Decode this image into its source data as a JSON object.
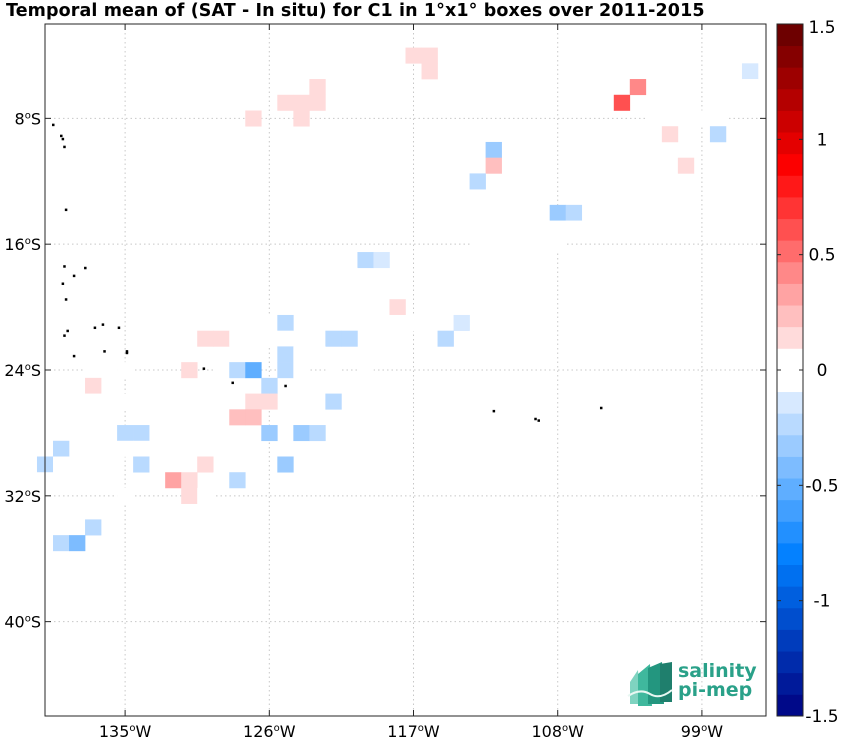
{
  "title": "Temporal mean of (SAT - In situ) for C1 in 1°x1° boxes over 2011-2015",
  "map": {
    "lon_range": [
      -140,
      -95
    ],
    "lat_range": [
      -46,
      -2
    ],
    "lon_ticks": [
      {
        "lon": -135,
        "deg": "135",
        "hem": "W"
      },
      {
        "lon": -126,
        "deg": "126",
        "hem": "W"
      },
      {
        "lon": -117,
        "deg": "117",
        "hem": "W"
      },
      {
        "lon": -108,
        "deg": "108",
        "hem": "W"
      },
      {
        "lon": -99,
        "deg": "99",
        "hem": "W"
      }
    ],
    "lat_ticks": [
      {
        "lat": -8,
        "deg": "8",
        "hem": "S"
      },
      {
        "lat": -16,
        "deg": "16",
        "hem": "S"
      },
      {
        "lat": -24,
        "deg": "24",
        "hem": "S"
      },
      {
        "lat": -32,
        "deg": "32",
        "hem": "S"
      },
      {
        "lat": -40,
        "deg": "40",
        "hem": "S"
      }
    ],
    "grid": true,
    "islands": [
      [
        -139.5,
        -8.4
      ],
      [
        -139.0,
        -9.1
      ],
      [
        -138.8,
        -9.8
      ],
      [
        -138.9,
        -9.3
      ],
      [
        -138.7,
        -13.8
      ],
      [
        -138.8,
        -17.4
      ],
      [
        -138.2,
        -18.0
      ],
      [
        -137.5,
        -17.5
      ],
      [
        -138.9,
        -18.5
      ],
      [
        -138.7,
        -19.5
      ],
      [
        -136.9,
        -21.3
      ],
      [
        -136.4,
        -21.1
      ],
      [
        -135.4,
        -21.3
      ],
      [
        -138.8,
        -21.8
      ],
      [
        -138.6,
        -21.5
      ],
      [
        -136.3,
        -22.8
      ],
      [
        -134.9,
        -22.8
      ],
      [
        -134.9,
        -22.9
      ],
      [
        -138.2,
        -23.1
      ],
      [
        -130.1,
        -23.9
      ],
      [
        -128.3,
        -24.8
      ],
      [
        -125.0,
        -25.0
      ],
      [
        -112.0,
        -26.6
      ],
      [
        -109.4,
        -27.1
      ],
      [
        -109.2,
        -27.2
      ],
      [
        -105.3,
        -26.4
      ]
    ]
  },
  "colorbar": {
    "range": [
      -1.5,
      1.5
    ],
    "levels": 32,
    "tick_values": [
      1.5,
      1,
      0.5,
      0,
      -0.5,
      -1,
      -1.5
    ],
    "tick_labels": [
      "1.5",
      "1",
      "0.5",
      "0",
      "-0.5",
      "-1",
      "-1.5"
    ]
  },
  "chart_data": {
    "type": "heatmap",
    "title": "Temporal mean of (SAT - In situ) for C1 in 1°x1° boxes over 2011-2015",
    "xlabel": "",
    "ylabel": "",
    "cell_size_deg": 1,
    "xlim": [
      -140,
      -95
    ],
    "ylim": [
      -46,
      -2
    ],
    "colorbar_range": [
      -1.5,
      1.5
    ],
    "cells": [
      {
        "lon": -117,
        "lat": -4,
        "v": 0.1
      },
      {
        "lon": -116,
        "lat": -4,
        "v": 0.1
      },
      {
        "lon": -116,
        "lat": -5,
        "v": 0.1
      },
      {
        "lon": -96,
        "lat": -5,
        "v": -0.1
      },
      {
        "lon": -123,
        "lat": -6,
        "v": 0.1
      },
      {
        "lon": -103,
        "lat": -6,
        "v": 0.4
      },
      {
        "lon": -96,
        "lat": -6,
        "v": -0.05
      },
      {
        "lon": -125,
        "lat": -7,
        "v": 0.1
      },
      {
        "lon": -124,
        "lat": -7,
        "v": 0.1
      },
      {
        "lon": -123,
        "lat": -7,
        "v": 0.1
      },
      {
        "lon": -104,
        "lat": -7,
        "v": 0.6
      },
      {
        "lon": -97,
        "lat": -7,
        "v": -0.05
      },
      {
        "lon": -127,
        "lat": -8,
        "v": 0.1
      },
      {
        "lon": -124,
        "lat": -8,
        "v": 0.1
      },
      {
        "lon": -102,
        "lat": -8,
        "v": -0.05
      },
      {
        "lon": -101,
        "lat": -8,
        "v": -0.05
      },
      {
        "lon": -100,
        "lat": -8,
        "v": -0.05
      },
      {
        "lon": -99,
        "lat": -8,
        "v": -0.05
      },
      {
        "lon": -98,
        "lat": -8,
        "v": -0.05
      },
      {
        "lon": -101,
        "lat": -9,
        "v": 0.1
      },
      {
        "lon": -98,
        "lat": -9,
        "v": -0.2
      },
      {
        "lon": -112,
        "lat": -10,
        "v": -0.3
      },
      {
        "lon": -112,
        "lat": -11,
        "v": 0.2
      },
      {
        "lon": -100,
        "lat": -11,
        "v": 0.1
      },
      {
        "lon": -113,
        "lat": -12,
        "v": -0.2
      },
      {
        "lon": -111,
        "lat": -13,
        "v": -0.05
      },
      {
        "lon": -105,
        "lat": -13,
        "v": -0.05
      },
      {
        "lon": -103,
        "lat": -13,
        "v": -0.05
      },
      {
        "lon": -101,
        "lat": -13,
        "v": -0.05
      },
      {
        "lon": -114,
        "lat": -14,
        "v": -0.05
      },
      {
        "lon": -108,
        "lat": -14,
        "v": -0.35
      },
      {
        "lon": -107,
        "lat": -14,
        "v": -0.2
      },
      {
        "lon": -113,
        "lat": -15,
        "v": -0.05
      },
      {
        "lon": -112,
        "lat": -15,
        "v": -0.05
      },
      {
        "lon": -111,
        "lat": -15,
        "v": -0.05
      },
      {
        "lon": -110,
        "lat": -15,
        "v": -0.05
      },
      {
        "lon": -109,
        "lat": -15,
        "v": -0.05
      },
      {
        "lon": -108,
        "lat": -15,
        "v": -0.05
      },
      {
        "lon": -107,
        "lat": -15,
        "v": -0.05
      },
      {
        "lon": -113,
        "lat": -16,
        "v": -0.05
      },
      {
        "lon": -112,
        "lat": -16,
        "v": -0.05
      },
      {
        "lon": -111,
        "lat": -16,
        "v": -0.05
      },
      {
        "lon": -110,
        "lat": -16,
        "v": -0.05
      },
      {
        "lon": -109,
        "lat": -16,
        "v": -0.05
      },
      {
        "lon": -108,
        "lat": -16,
        "v": -0.05
      },
      {
        "lon": -121,
        "lat": -17,
        "v": -0.05
      },
      {
        "lon": -120,
        "lat": -17,
        "v": -0.2
      },
      {
        "lon": -119,
        "lat": -17,
        "v": -0.1
      },
      {
        "lon": -113,
        "lat": -17,
        "v": -0.05
      },
      {
        "lon": -112,
        "lat": -17,
        "v": -0.05
      },
      {
        "lon": -111,
        "lat": -17,
        "v": -0.05
      },
      {
        "lon": -121,
        "lat": -18,
        "v": -0.05
      },
      {
        "lon": -115,
        "lat": -18,
        "v": -0.05
      },
      {
        "lon": -113,
        "lat": -18,
        "v": -0.05
      },
      {
        "lon": -112,
        "lat": -18,
        "v": -0.05
      },
      {
        "lon": -111,
        "lat": -18,
        "v": -0.05
      },
      {
        "lon": -110,
        "lat": -18,
        "v": -0.05
      },
      {
        "lon": -121,
        "lat": -19,
        "v": -0.05
      },
      {
        "lon": -115,
        "lat": -19,
        "v": -0.05
      },
      {
        "lon": -113,
        "lat": -19,
        "v": -0.05
      },
      {
        "lon": -111,
        "lat": -19,
        "v": -0.05
      },
      {
        "lon": -110,
        "lat": -19,
        "v": -0.05
      },
      {
        "lon": -125,
        "lat": -20,
        "v": -0.05
      },
      {
        "lon": -124,
        "lat": -20,
        "v": -0.05
      },
      {
        "lon": -118,
        "lat": -20,
        "v": 0.15
      },
      {
        "lon": -116,
        "lat": -20,
        "v": -0.05
      },
      {
        "lon": -115,
        "lat": -20,
        "v": -0.05
      },
      {
        "lon": -114,
        "lat": -20,
        "v": -0.05
      },
      {
        "lon": -113,
        "lat": -20,
        "v": -0.05
      },
      {
        "lon": -112,
        "lat": -20,
        "v": -0.05
      },
      {
        "lon": -127,
        "lat": -21,
        "v": -0.05
      },
      {
        "lon": -126,
        "lat": -21,
        "v": -0.05
      },
      {
        "lon": -125,
        "lat": -21,
        "v": -0.2
      },
      {
        "lon": -123,
        "lat": -21,
        "v": -0.05
      },
      {
        "lon": -121,
        "lat": -21,
        "v": -0.05
      },
      {
        "lon": -118,
        "lat": -21,
        "v": -0.05
      },
      {
        "lon": -117,
        "lat": -21,
        "v": -0.05
      },
      {
        "lon": -115,
        "lat": -21,
        "v": -0.05
      },
      {
        "lon": -114,
        "lat": -21,
        "v": -0.1
      },
      {
        "lon": -132,
        "lat": -22,
        "v": -0.05
      },
      {
        "lon": -130,
        "lat": -22,
        "v": 0.1
      },
      {
        "lon": -129,
        "lat": -22,
        "v": 0.1
      },
      {
        "lon": -128,
        "lat": -22,
        "v": -0.05
      },
      {
        "lon": -127,
        "lat": -22,
        "v": -0.05
      },
      {
        "lon": -126,
        "lat": -22,
        "v": -0.05
      },
      {
        "lon": -125,
        "lat": -22,
        "v": -0.05
      },
      {
        "lon": -123,
        "lat": -22,
        "v": -0.05
      },
      {
        "lon": -122,
        "lat": -22,
        "v": -0.2
      },
      {
        "lon": -121,
        "lat": -22,
        "v": -0.2
      },
      {
        "lon": -119,
        "lat": -22,
        "v": -0.05
      },
      {
        "lon": -115,
        "lat": -22,
        "v": -0.2
      },
      {
        "lon": -113,
        "lat": -22,
        "v": -0.05
      },
      {
        "lon": -132,
        "lat": -23,
        "v": -0.05
      },
      {
        "lon": -127,
        "lat": -23,
        "v": -0.05
      },
      {
        "lon": -125,
        "lat": -23,
        "v": -0.2
      },
      {
        "lon": -124,
        "lat": -23,
        "v": -0.05
      },
      {
        "lon": -123,
        "lat": -23,
        "v": -0.05
      },
      {
        "lon": -119,
        "lat": -23,
        "v": -0.05
      },
      {
        "lon": -137,
        "lat": -24,
        "v": -0.05
      },
      {
        "lon": -136,
        "lat": -24,
        "v": -0.05
      },
      {
        "lon": -135,
        "lat": -24,
        "v": -0.05
      },
      {
        "lon": -131,
        "lat": -24,
        "v": 0.1
      },
      {
        "lon": -129,
        "lat": -24,
        "v": -0.05
      },
      {
        "lon": -128,
        "lat": -24,
        "v": -0.2
      },
      {
        "lon": -127,
        "lat": -24,
        "v": -0.5
      },
      {
        "lon": -125,
        "lat": -24,
        "v": -0.2
      },
      {
        "lon": -124,
        "lat": -24,
        "v": -0.05
      },
      {
        "lon": -122,
        "lat": -24,
        "v": -0.05
      },
      {
        "lon": -120,
        "lat": -24,
        "v": -0.05
      },
      {
        "lon": -140,
        "lat": -25,
        "v": -0.05
      },
      {
        "lon": -137,
        "lat": -25,
        "v": 0.1
      },
      {
        "lon": -134,
        "lat": -25,
        "v": -0.05
      },
      {
        "lon": -129,
        "lat": -25,
        "v": -0.05
      },
      {
        "lon": -126,
        "lat": -25,
        "v": -0.2
      },
      {
        "lon": -123,
        "lat": -25,
        "v": -0.05
      },
      {
        "lon": -121,
        "lat": -25,
        "v": -0.05
      },
      {
        "lon": -137,
        "lat": -26,
        "v": -0.05
      },
      {
        "lon": -136,
        "lat": -26,
        "v": -0.05
      },
      {
        "lon": -135,
        "lat": -26,
        "v": -0.05
      },
      {
        "lon": -131,
        "lat": -26,
        "v": -0.05
      },
      {
        "lon": -130,
        "lat": -26,
        "v": -0.05
      },
      {
        "lon": -129,
        "lat": -26,
        "v": -0.05
      },
      {
        "lon": -127,
        "lat": -26,
        "v": 0.1
      },
      {
        "lon": -126,
        "lat": -26,
        "v": 0.1
      },
      {
        "lon": -122,
        "lat": -26,
        "v": -0.2
      },
      {
        "lon": -139,
        "lat": -27,
        "v": -0.05
      },
      {
        "lon": -138,
        "lat": -27,
        "v": -0.05
      },
      {
        "lon": -128,
        "lat": -27,
        "v": 0.2
      },
      {
        "lon": -127,
        "lat": -27,
        "v": 0.2
      },
      {
        "lon": -124,
        "lat": -27,
        "v": -0.05
      },
      {
        "lon": -138,
        "lat": -28,
        "v": -0.05
      },
      {
        "lon": -135,
        "lat": -28,
        "v": -0.2
      },
      {
        "lon": -134,
        "lat": -28,
        "v": -0.2
      },
      {
        "lon": -126,
        "lat": -28,
        "v": -0.3
      },
      {
        "lon": -124,
        "lat": -28,
        "v": -0.3
      },
      {
        "lon": -123,
        "lat": -28,
        "v": -0.2
      },
      {
        "lon": -139,
        "lat": -29,
        "v": -0.2
      },
      {
        "lon": -135,
        "lat": -29,
        "v": -0.05
      },
      {
        "lon": -134,
        "lat": -29,
        "v": -0.05
      },
      {
        "lon": -140,
        "lat": -30,
        "v": -0.2
      },
      {
        "lon": -139,
        "lat": -30,
        "v": -0.05
      },
      {
        "lon": -137,
        "lat": -30,
        "v": -0.05
      },
      {
        "lon": -136,
        "lat": -30,
        "v": -0.05
      },
      {
        "lon": -134,
        "lat": -30,
        "v": -0.2
      },
      {
        "lon": -130,
        "lat": -30,
        "v": 0.1
      },
      {
        "lon": -125,
        "lat": -30,
        "v": -0.3
      },
      {
        "lon": -140,
        "lat": -31,
        "v": -0.05
      },
      {
        "lon": -139,
        "lat": -31,
        "v": -0.05
      },
      {
        "lon": -138,
        "lat": -31,
        "v": -0.05
      },
      {
        "lon": -132,
        "lat": -31,
        "v": 0.3
      },
      {
        "lon": -131,
        "lat": -31,
        "v": 0.1
      },
      {
        "lon": -129,
        "lat": -31,
        "v": -0.05
      },
      {
        "lon": -128,
        "lat": -31,
        "v": -0.2
      },
      {
        "lon": -135,
        "lat": -32,
        "v": -0.05
      },
      {
        "lon": -131,
        "lat": -32,
        "v": 0.1
      },
      {
        "lon": -130,
        "lat": -32,
        "v": -0.05
      },
      {
        "lon": -139,
        "lat": -33,
        "v": -0.05
      },
      {
        "lon": -137,
        "lat": -34,
        "v": -0.2
      },
      {
        "lon": -139,
        "lat": -35,
        "v": -0.2
      },
      {
        "lon": -138,
        "lat": -35,
        "v": -0.4
      }
    ]
  },
  "logo": {
    "line1": "salinity",
    "line2": "pi-mep"
  }
}
